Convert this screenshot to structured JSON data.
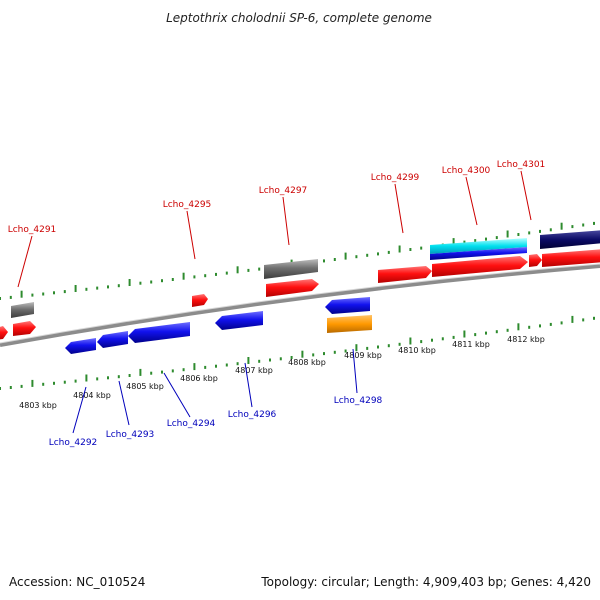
{
  "title": "Leptothrix cholodnii SP-6, complete genome",
  "footer": {
    "accession": "Accession: NC_010524",
    "summary": "Topology: circular; Length: 4,909,403 bp; Genes: 4,420"
  },
  "colors": {
    "plus_label": "#cc0000",
    "minus_label": "#0000bb",
    "tick": "#2e8b2e",
    "backbone": "#888888"
  },
  "kbp_labels": [
    "4803 kbp",
    "4804 kbp",
    "4805 kbp",
    "4806 kbp",
    "4807 kbp",
    "4808 kbp",
    "4809 kbp",
    "4810 kbp",
    "4811 kbp",
    "4812 kbp"
  ],
  "plus_labels": [
    "Lcho_4291",
    "Lcho_4295",
    "Lcho_4297",
    "Lcho_4299",
    "Lcho_4300",
    "Lcho_4301"
  ],
  "minus_labels": [
    "Lcho_4292",
    "Lcho_4293",
    "Lcho_4294",
    "Lcho_4296",
    "Lcho_4298"
  ]
}
